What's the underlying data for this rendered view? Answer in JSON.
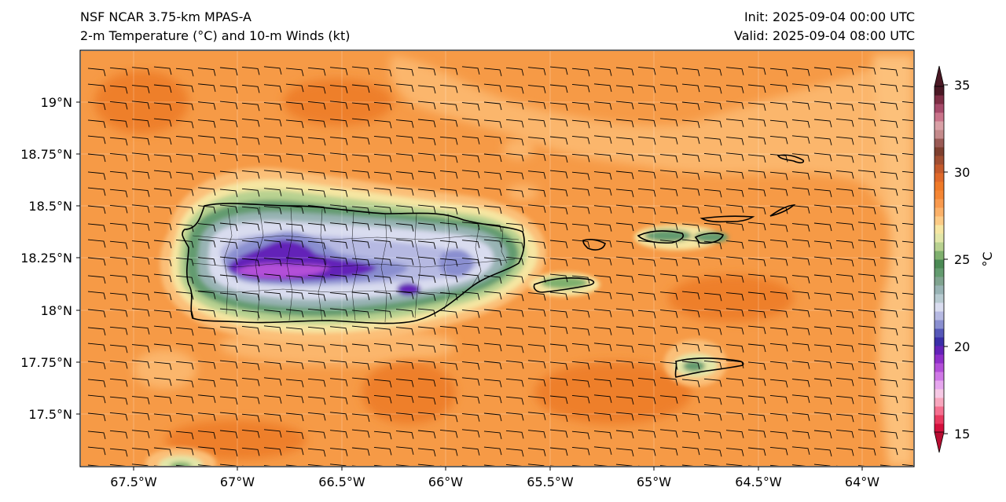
{
  "header": {
    "title_left": "NSF NCAR 3.75-km MPAS-A",
    "subtitle_left": "2-m Temperature (°C) and 10-m Winds (kt)",
    "init": "Init: 2025-09-04 00:00 UTC",
    "valid": "Valid: 2025-09-04 08:00 UTC"
  },
  "axes": {
    "x_ticks": [
      "67.5°W",
      "67°W",
      "66.5°W",
      "66°W",
      "65.5°W",
      "65°W",
      "64.5°W",
      "64°W"
    ],
    "y_ticks": [
      "19°N",
      "18.75°N",
      "18.5°N",
      "18.25°N",
      "18°N",
      "17.75°N",
      "17.5°N"
    ],
    "lon_range": [
      -67.75,
      -63.75
    ],
    "lat_range": [
      17.3,
      19.25
    ]
  },
  "colorbar": {
    "label": "°C",
    "ticks": [
      "15",
      "20",
      "25",
      "30",
      "35"
    ],
    "range": [
      15,
      35
    ],
    "colors": [
      "#d40f3c",
      "#e8395f",
      "#f56f8f",
      "#f8a6bd",
      "#f6c8e4",
      "#e6a6ee",
      "#cf78e6",
      "#b34fd8",
      "#8f2fc9",
      "#6422b8",
      "#3a2ea8",
      "#5658b8",
      "#8a8fd0",
      "#b6b9e2",
      "#d9dcef",
      "#b7cad0",
      "#98b3b4",
      "#7fa38f",
      "#639b6f",
      "#4b8a55",
      "#7fb06e",
      "#b8d190",
      "#e2e6a8",
      "#f6e6a2",
      "#fccb86",
      "#fbb169",
      "#f99a4e",
      "#f58634",
      "#ef7a28",
      "#e0692a",
      "#c45a2c",
      "#a04e32",
      "#7e3f2f",
      "#9a5a55",
      "#c48a8b",
      "#d9a0a6",
      "#c9738a",
      "#a64a6a",
      "#7d2d44",
      "#4a1824"
    ]
  },
  "map": {
    "region": "Puerto Rico and Virgin Islands",
    "background_temp_c": 28,
    "wind_barb_direction": "easterly",
    "colors": {
      "ocean_dark": "#f08a33",
      "ocean_light": "#fbb66c",
      "ocean_mid": "#f69a46"
    }
  }
}
